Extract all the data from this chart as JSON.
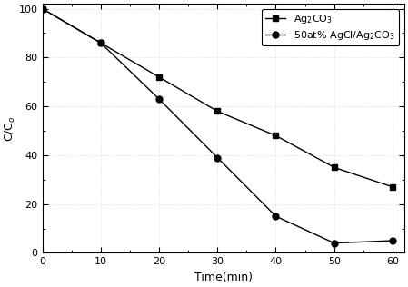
{
  "series1": {
    "label": "Ag$_2$CO$_3$",
    "x": [
      0,
      10,
      20,
      30,
      40,
      50,
      60
    ],
    "y": [
      100,
      86,
      72,
      58,
      48,
      35,
      27
    ],
    "marker": "s",
    "color": "#000000",
    "markersize": 5
  },
  "series2": {
    "label": "50at% AgCl/Ag$_2$CO$_3$",
    "x": [
      0,
      10,
      20,
      30,
      40,
      50,
      60
    ],
    "y": [
      100,
      86,
      63,
      39,
      15,
      4,
      5
    ],
    "marker": "o",
    "color": "#000000",
    "markersize": 5
  },
  "xlabel": "Time(min)",
  "ylabel": "C/C$_o$",
  "xlim": [
    0,
    62
  ],
  "ylim": [
    0,
    102
  ],
  "xticks": [
    0,
    10,
    20,
    30,
    40,
    50,
    60
  ],
  "yticks": [
    0,
    20,
    40,
    60,
    80,
    100
  ],
  "legend_loc": "upper right",
  "background_color": "#ffffff",
  "linewidth": 1.0,
  "grid_color": "#cccccc",
  "grid_linestyle": ":",
  "grid_linewidth": 0.5
}
